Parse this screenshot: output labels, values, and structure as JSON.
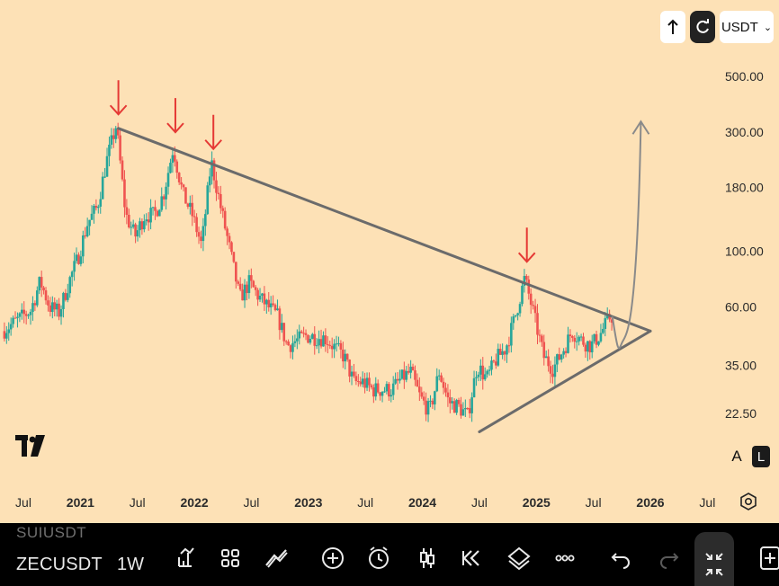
{
  "header": {
    "currency": "USDT"
  },
  "toolbar": {
    "faded_symbol": "SUIUSDT",
    "symbol": "ZECUSDT",
    "interval": "1W",
    "icons": [
      "indicators-icon",
      "layouts-icon",
      "drawing-tools-icon",
      "add-icon",
      "alert-icon",
      "candle-type-icon",
      "replay-icon",
      "layers-icon",
      "more-icon",
      "undo-icon",
      "redo-icon",
      "fullscreen-icon",
      "add-panel-icon"
    ]
  },
  "scale_buttons": {
    "auto": "A",
    "log": "L"
  },
  "chart_data": {
    "type": "candlestick",
    "symbol": "ZECUSDT",
    "interval": "1W",
    "y_scale": "log",
    "ylim": [
      16,
      700
    ],
    "y_ticks": [
      22.5,
      35.0,
      60.0,
      100.0,
      180.0,
      300.0,
      500.0
    ],
    "y_tick_labels": [
      "22.50",
      "35.00",
      "60.00",
      "100.00",
      "180.00",
      "300.00",
      "500.00"
    ],
    "x_ticks": [
      "Jul",
      "2021",
      "Jul",
      "2022",
      "Jul",
      "2023",
      "Jul",
      "2024",
      "Jul",
      "2025",
      "Jul",
      "2026",
      "Jul"
    ],
    "x_tick_dates": [
      "2020-07",
      "2021-01",
      "2021-07",
      "2022-01",
      "2022-07",
      "2023-01",
      "2023-07",
      "2024-01",
      "2024-07",
      "2025-01",
      "2025-07",
      "2026-01",
      "2026-07"
    ],
    "up_color": "#26A69A",
    "down_color": "#EF5350",
    "price_path": [
      [
        "2020-05",
        48
      ],
      [
        "2020-08",
        58
      ],
      [
        "2020-09",
        76
      ],
      [
        "2020-10",
        60
      ],
      [
        "2020-11",
        57
      ],
      [
        "2020-12",
        75
      ],
      [
        "2021-01",
        95
      ],
      [
        "2021-02",
        130
      ],
      [
        "2021-03",
        150
      ],
      [
        "2021-04",
        230
      ],
      [
        "2021-05",
        320
      ],
      [
        "2021-06",
        140
      ],
      [
        "2021-07",
        115
      ],
      [
        "2021-08",
        140
      ],
      [
        "2021-09",
        140
      ],
      [
        "2021-10",
        170
      ],
      [
        "2021-11",
        260
      ],
      [
        "2021-12",
        170
      ],
      [
        "2022-01",
        140
      ],
      [
        "2022-02",
        105
      ],
      [
        "2022-03",
        230
      ],
      [
        "2022-04",
        150
      ],
      [
        "2022-05",
        100
      ],
      [
        "2022-06",
        65
      ],
      [
        "2022-07",
        75
      ],
      [
        "2022-08",
        66
      ],
      [
        "2022-09",
        60
      ],
      [
        "2022-10",
        55
      ],
      [
        "2022-11",
        42
      ],
      [
        "2022-12",
        44
      ],
      [
        "2023-01",
        46
      ],
      [
        "2023-03",
        45
      ],
      [
        "2023-05",
        38
      ],
      [
        "2023-06",
        30
      ],
      [
        "2023-07",
        30
      ],
      [
        "2023-08",
        28
      ],
      [
        "2023-10",
        28
      ],
      [
        "2023-11",
        31
      ],
      [
        "2023-12",
        33
      ],
      [
        "2024-01",
        26
      ],
      [
        "2024-02",
        23
      ],
      [
        "2024-03",
        33
      ],
      [
        "2024-04",
        25
      ],
      [
        "2024-05",
        24
      ],
      [
        "2024-06",
        22
      ],
      [
        "2024-07",
        35
      ],
      [
        "2024-08",
        31
      ],
      [
        "2024-09",
        37
      ],
      [
        "2024-10",
        41
      ],
      [
        "2024-11",
        55
      ],
      [
        "2024-12",
        78
      ],
      [
        "2025-01",
        55
      ],
      [
        "2025-02",
        38
      ],
      [
        "2025-03",
        34
      ],
      [
        "2025-04",
        40
      ],
      [
        "2025-05",
        48
      ],
      [
        "2025-06",
        44
      ],
      [
        "2025-07",
        42
      ],
      [
        "2025-08",
        47
      ],
      [
        "2025-09",
        55
      ]
    ],
    "annotations": {
      "resistance_line": [
        [
          "2021-05",
          310
        ],
        [
          "2026-01",
          48
        ]
      ],
      "support_line": [
        [
          "2024-07",
          19
        ],
        [
          "2026-01",
          48
        ]
      ],
      "peak_arrows": [
        [
          "2021-05",
          330
        ],
        [
          "2021-11",
          280
        ],
        [
          "2022-03",
          240
        ],
        [
          "2024-12",
          85
        ]
      ],
      "projection_path": [
        [
          "2025-09",
          55
        ],
        [
          "2025-10",
          43
        ],
        [
          "2025-11",
          62
        ],
        [
          "2025-12",
          330
        ]
      ]
    }
  }
}
